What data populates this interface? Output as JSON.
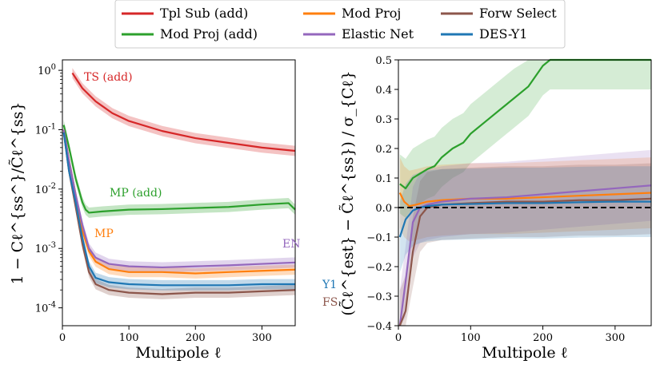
{
  "chart_data": [
    {
      "type": "line",
      "scale_y": "log",
      "title": "",
      "xlabel": "Multipole ℓ",
      "ylabel": "1 − Cℓ^{ss^}/C̃ℓ^{ss}",
      "xlim": [
        0,
        350
      ],
      "ylim": [
        5e-05,
        1.5
      ],
      "x_ticks": [
        "0",
        "100",
        "200",
        "300"
      ],
      "y_ticks": [
        {
          "base": "10",
          "exp": "0",
          "value": 1
        },
        {
          "base": "10",
          "exp": "-1",
          "value": 0.1
        },
        {
          "base": "10",
          "exp": "-2",
          "value": 0.01
        },
        {
          "base": "10",
          "exp": "-3",
          "value": 0.001
        },
        {
          "base": "10",
          "exp": "-4",
          "value": 0.0001
        }
      ],
      "series": [
        {
          "name": "Tpl Sub (add)",
          "label": "TS (add)",
          "color": "#d62728",
          "x": [
            15,
            30,
            50,
            75,
            100,
            150,
            200,
            250,
            300,
            350
          ],
          "values": [
            0.9,
            0.5,
            0.3,
            0.19,
            0.14,
            0.095,
            0.072,
            0.06,
            0.05,
            0.044
          ]
        },
        {
          "name": "Mod Proj (add)",
          "label": "MP (add)",
          "color": "#2ca02c",
          "x": [
            2,
            10,
            20,
            30,
            35,
            40,
            60,
            100,
            150,
            200,
            250,
            300,
            340,
            350
          ],
          "values": [
            0.12,
            0.05,
            0.015,
            0.006,
            0.0045,
            0.004,
            0.0042,
            0.0045,
            0.0046,
            0.0048,
            0.005,
            0.0055,
            0.0058,
            0.0045
          ]
        },
        {
          "name": "Mod Proj",
          "label": "MP",
          "color": "#ff7f0e",
          "x": [
            2,
            10,
            20,
            30,
            40,
            50,
            70,
            100,
            150,
            200,
            250,
            300,
            350
          ],
          "values": [
            0.1,
            0.03,
            0.008,
            0.002,
            0.0009,
            0.0006,
            0.00045,
            0.0004,
            0.0004,
            0.00038,
            0.0004,
            0.00042,
            0.00044
          ]
        },
        {
          "name": "Elastic Net",
          "label": "EN",
          "color": "#9467bd",
          "x": [
            2,
            10,
            20,
            30,
            40,
            50,
            70,
            100,
            150,
            200,
            250,
            300,
            350
          ],
          "values": [
            0.1,
            0.03,
            0.008,
            0.0025,
            0.001,
            0.0007,
            0.00055,
            0.0005,
            0.00048,
            0.0005,
            0.00052,
            0.00055,
            0.00058
          ]
        },
        {
          "name": "Forw Select",
          "label": "FS",
          "color": "#8c564b",
          "x": [
            2,
            10,
            20,
            30,
            40,
            50,
            70,
            100,
            150,
            200,
            250,
            300,
            350
          ],
          "values": [
            0.09,
            0.02,
            0.005,
            0.0012,
            0.0004,
            0.00025,
            0.0002,
            0.00018,
            0.00017,
            0.00018,
            0.00018,
            0.00019,
            0.0002
          ]
        },
        {
          "name": "DES-Y1",
          "label": "Y1",
          "color": "#1f77b4",
          "x": [
            2,
            10,
            20,
            30,
            40,
            50,
            70,
            100,
            150,
            200,
            250,
            300,
            350
          ],
          "values": [
            0.09,
            0.02,
            0.006,
            0.0015,
            0.0005,
            0.00032,
            0.00027,
            0.00025,
            0.00024,
            0.00024,
            0.00024,
            0.00025,
            0.00025
          ]
        }
      ]
    },
    {
      "type": "line",
      "title": "",
      "xlabel": "Multipole ℓ",
      "ylabel": "(C̃ℓ^{est} − C̃ℓ^{ss}) / σ_{Cℓ}",
      "xlim": [
        0,
        350
      ],
      "ylim": [
        -0.4,
        0.5
      ],
      "x_ticks": [
        "0",
        "100",
        "200",
        "300"
      ],
      "y_ticks": [
        "−0.4",
        "−0.3",
        "−0.2",
        "−0.1",
        "0.0",
        "0.1",
        "0.2",
        "0.3",
        "0.4",
        "0.5"
      ],
      "y_tick_values": [
        -0.4,
        -0.3,
        -0.2,
        -0.1,
        0.0,
        0.1,
        0.2,
        0.3,
        0.4,
        0.5
      ],
      "reference_line": 0.0,
      "series": [
        {
          "name": "Mod Proj (add)",
          "color": "#2ca02c",
          "x": [
            2,
            10,
            20,
            30,
            40,
            50,
            60,
            75,
            90,
            100,
            120,
            140,
            160,
            180,
            200,
            210,
            250,
            300,
            350
          ],
          "values": [
            0.08,
            0.065,
            0.1,
            0.115,
            0.13,
            0.14,
            0.17,
            0.2,
            0.22,
            0.25,
            0.29,
            0.33,
            0.37,
            0.41,
            0.48,
            0.5,
            0.5,
            0.5,
            0.5
          ]
        },
        {
          "name": "Mod Proj",
          "color": "#ff7f0e",
          "x": [
            2,
            8,
            15,
            25,
            40,
            60,
            100,
            150,
            200,
            250,
            300,
            350
          ],
          "values": [
            0.05,
            0.02,
            0.005,
            0.01,
            0.02,
            0.025,
            0.03,
            0.03,
            0.035,
            0.04,
            0.045,
            0.05
          ]
        },
        {
          "name": "Elastic Net",
          "color": "#9467bd",
          "x": [
            2,
            10,
            20,
            30,
            40,
            60,
            100,
            150,
            200,
            250,
            300,
            350
          ],
          "values": [
            -0.4,
            -0.25,
            -0.05,
            0.0,
            0.01,
            0.02,
            0.03,
            0.035,
            0.045,
            0.055,
            0.065,
            0.075
          ]
        },
        {
          "name": "Forw Select",
          "color": "#8c564b",
          "x": [
            2,
            10,
            20,
            30,
            40,
            60,
            100,
            150,
            200,
            250,
            300,
            350
          ],
          "values": [
            -0.4,
            -0.35,
            -0.15,
            -0.03,
            0.0,
            0.01,
            0.015,
            0.02,
            0.02,
            0.025,
            0.025,
            0.03
          ]
        },
        {
          "name": "DES-Y1",
          "color": "#1f77b4",
          "x": [
            2,
            10,
            20,
            30,
            40,
            60,
            100,
            150,
            200,
            250,
            300,
            350
          ],
          "values": [
            -0.1,
            -0.04,
            -0.01,
            0.0,
            0.005,
            0.01,
            0.012,
            0.015,
            0.015,
            0.018,
            0.02,
            0.02
          ]
        }
      ]
    }
  ],
  "legend": {
    "placement": "top-center",
    "entries": [
      {
        "label": "Tpl Sub (add)",
        "color": "#d62728"
      },
      {
        "label": "Mod Proj (add)",
        "color": "#2ca02c"
      },
      {
        "label": "Mod Proj",
        "color": "#ff7f0e"
      },
      {
        "label": "Elastic Net",
        "color": "#9467bd"
      },
      {
        "label": "Forw Select",
        "color": "#8c564b"
      },
      {
        "label": "DES-Y1",
        "color": "#1f77b4"
      }
    ]
  }
}
